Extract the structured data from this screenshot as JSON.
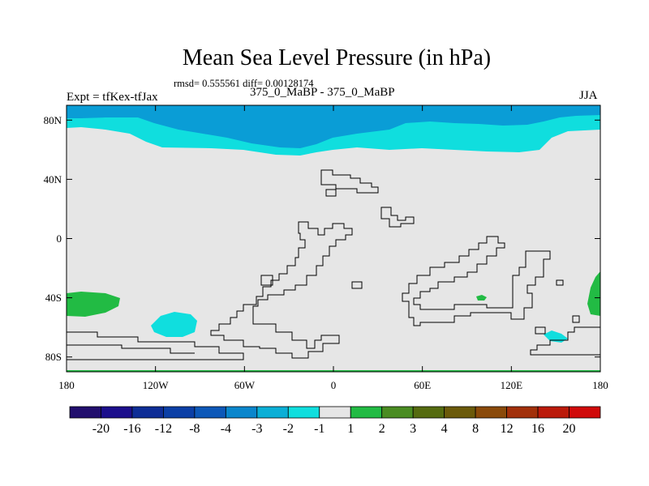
{
  "title": "Mean Sea Level Pressure (in hPa)",
  "stats_text": "rmsd= 0.555561 diff= 0.00128174",
  "left_label": "Expt = tfKex-tfJax",
  "center_label": "375_0_MaBP - 375_0_MaBP",
  "right_label": "JJA",
  "map": {
    "lat_ticks": [
      {
        "value": 80,
        "label": "80N"
      },
      {
        "value": 40,
        "label": "40N"
      },
      {
        "value": 0,
        "label": "0"
      },
      {
        "value": -40,
        "label": "40S"
      },
      {
        "value": -80,
        "label": "80S"
      }
    ],
    "lon_ticks": [
      {
        "value": -180,
        "label": "180"
      },
      {
        "value": -120,
        "label": "120W"
      },
      {
        "value": -60,
        "label": "60W"
      },
      {
        "value": 0,
        "label": "0"
      },
      {
        "value": 60,
        "label": "60E"
      },
      {
        "value": 120,
        "label": "120E"
      },
      {
        "value": 180,
        "label": "180"
      }
    ],
    "lat_range": [
      -90,
      90
    ],
    "lon_range": [
      -180,
      180
    ]
  },
  "colorbar": {
    "labels": [
      "-20",
      "-16",
      "-12",
      "-8",
      "-4",
      "-3",
      "-2",
      "-1",
      "1",
      "2",
      "3",
      "4",
      "8",
      "12",
      "16",
      "20"
    ],
    "colors": [
      "#220f6e",
      "#1c0f8c",
      "#0e2d96",
      "#0b3fa6",
      "#0d58b8",
      "#0a86cc",
      "#0aafd6",
      "#10dede",
      "#e6e6e6",
      "#22bb44",
      "#4a8c22",
      "#556b10",
      "#6b5a0a",
      "#8a4a0a",
      "#a2300a",
      "#bb1a0a",
      "#d00a0a"
    ]
  },
  "colors": {
    "land_bg": "#e6e6e6",
    "neg_strong": "#0a9dd6",
    "neg_mid": "#10dede",
    "pos": "#22bb44"
  }
}
